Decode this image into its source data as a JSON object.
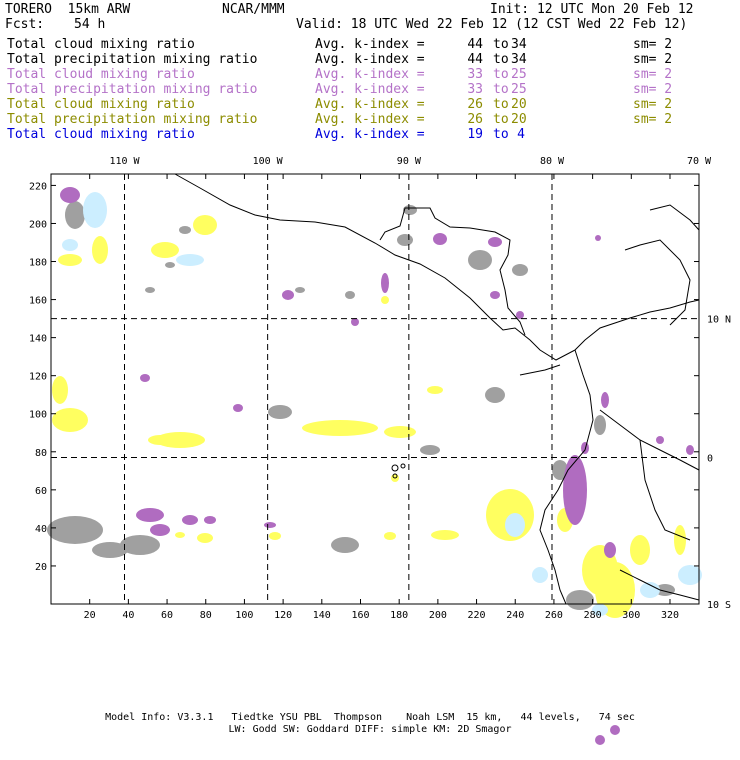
{
  "header": {
    "model": "TORERO  15km ARW",
    "center": "NCAR/MMM",
    "init": "Init: 12 UTC Mon 20 Feb 12",
    "fcst_label": "Fcst:",
    "fcst_value": "54 h",
    "valid": "Valid: 18 UTC Wed 22 Feb 12 (12 CST Wed 22 Feb 12)"
  },
  "legend": [
    {
      "name": "Total cloud mixing ratio",
      "avg": "Avg. k-index =",
      "from": "44",
      "to": "to",
      "end": "34",
      "sm": "sm= 2",
      "color": "#000000"
    },
    {
      "name": "Total precipitation mixing ratio",
      "avg": "Avg. k-index =",
      "from": "44",
      "to": "to",
      "end": "34",
      "sm": "sm= 2",
      "color": "#000000"
    },
    {
      "name": "Total cloud mixing ratio",
      "avg": "Avg. k-index =",
      "from": "33",
      "to": "to",
      "end": "25",
      "sm": "sm= 2",
      "color": "#b472c8"
    },
    {
      "name": "Total precipitation mixing ratio",
      "avg": "Avg. k-index =",
      "from": "33",
      "to": "to",
      "end": "25",
      "sm": "sm= 2",
      "color": "#b472c8"
    },
    {
      "name": "Total cloud mixing ratio",
      "avg": "Avg. k-index =",
      "from": "26",
      "to": "to",
      "end": "20",
      "sm": "sm= 2",
      "color": "#8c8c00"
    },
    {
      "name": "Total precipitation mixing ratio",
      "avg": "Avg. k-index =",
      "from": "26",
      "to": "to",
      "end": "20",
      "sm": "sm= 2",
      "color": "#8c8c00"
    },
    {
      "name": "Total cloud mixing ratio",
      "avg": "Avg. k-index =",
      "from": "19",
      "to": "to",
      "end": "4",
      "sm": "",
      "color": "#0000dc"
    }
  ],
  "map": {
    "lon_labels": [
      "110 W",
      "100 W",
      "90 W",
      "80 W",
      "70 W"
    ],
    "lat_labels": [
      "10 N",
      "0",
      "10 S"
    ],
    "x_ticks": [
      "20",
      "40",
      "60",
      "80",
      "100",
      "120",
      "140",
      "160",
      "180",
      "200",
      "220",
      "240",
      "260",
      "280",
      "300",
      "320"
    ],
    "y_ticks": [
      "20",
      "40",
      "60",
      "80",
      "100",
      "120",
      "140",
      "160",
      "180",
      "200",
      "220"
    ],
    "colors": {
      "gray": "#a0a0a0",
      "purple": "#b06cc0",
      "yellow": "#ffff60",
      "lightblue": "#cceeff",
      "coast": "#000000"
    }
  },
  "footer": {
    "line1": "Model Info: V3.3.1   Tiedtke YSU PBL  Thompson    Noah LSM  15 km,   44 levels,   74 sec",
    "line2": "LW: Godd SW: Goddard DIFF: simple KM: 2D Smagor"
  }
}
